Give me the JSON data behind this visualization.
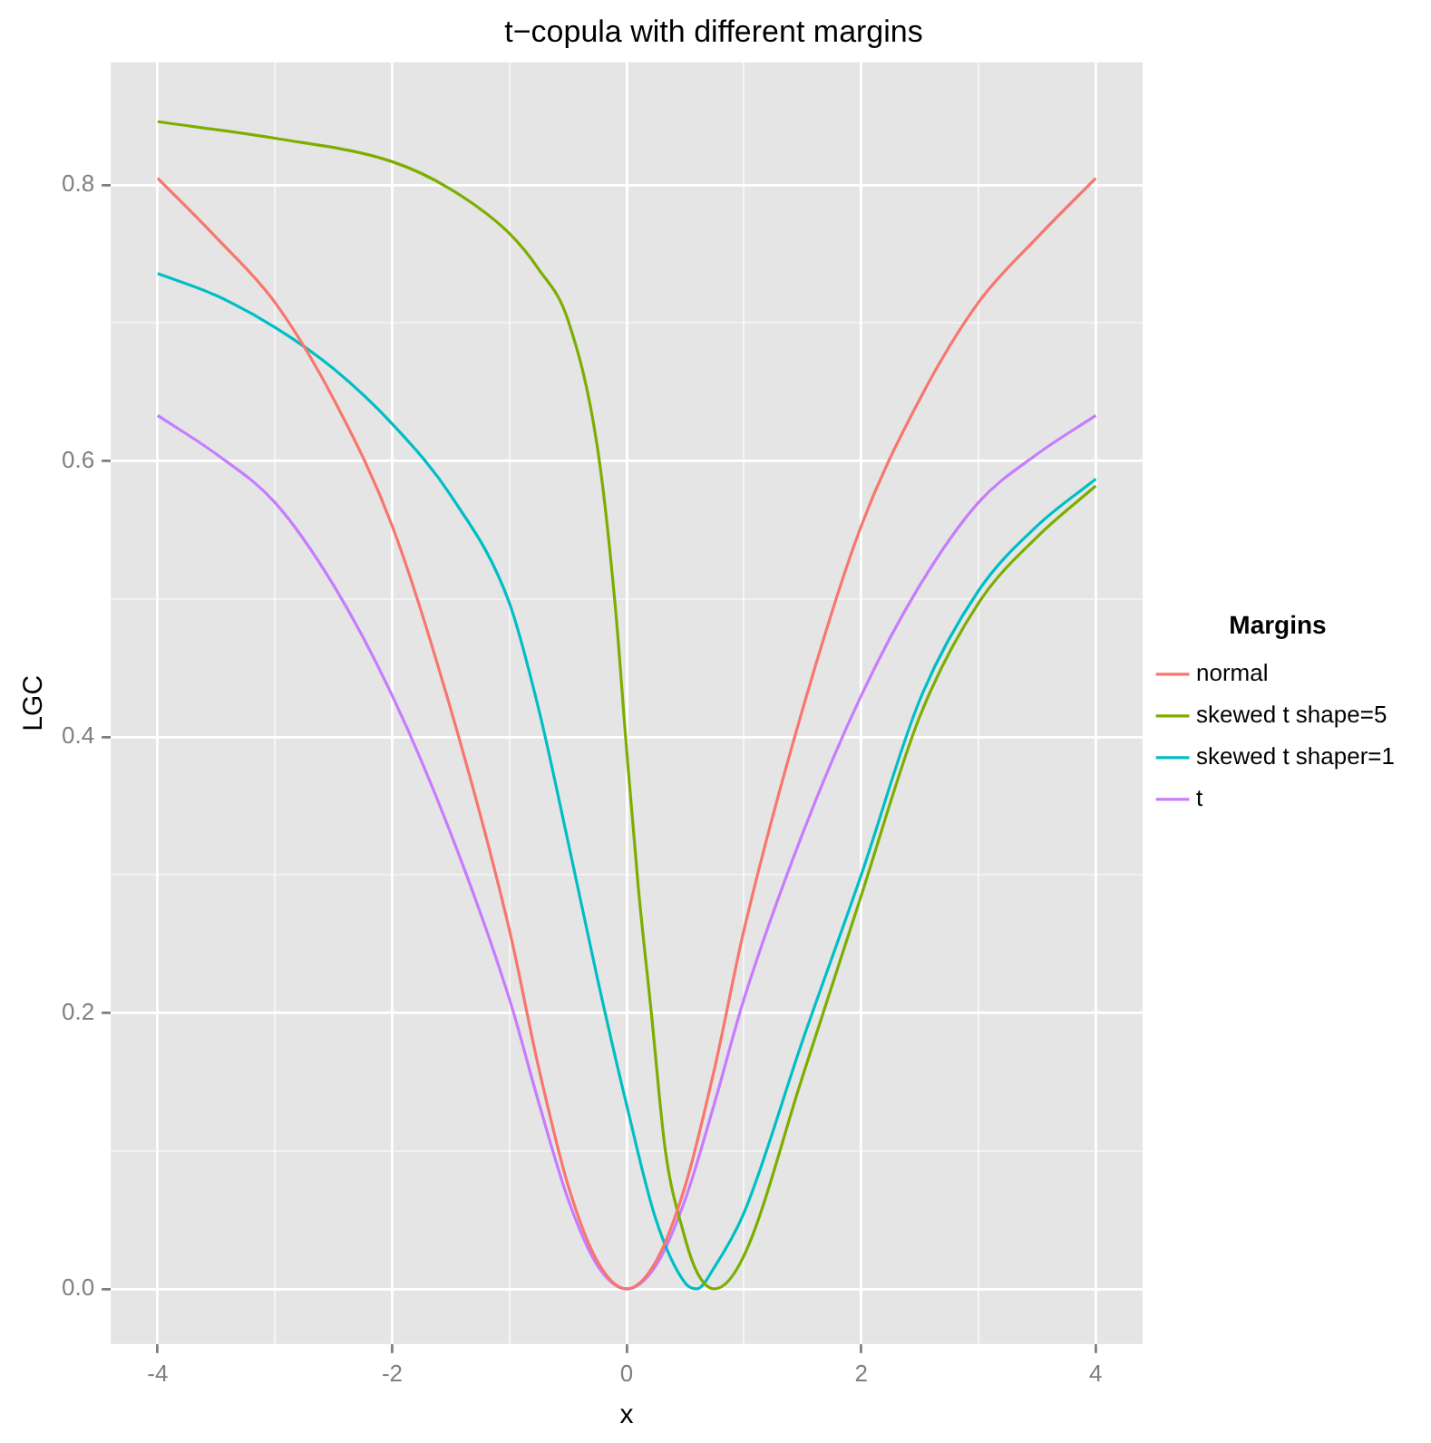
{
  "chart_data": {
    "type": "line",
    "title": "t−copula with different margins",
    "xlabel": "x",
    "ylabel": "LGC",
    "legend_title": "Margins",
    "xlim": [
      -4.4,
      4.4
    ],
    "ylim": [
      -0.04,
      0.889
    ],
    "xticks": [
      -4,
      {
        "value": -3,
        "label": null
      },
      -2,
      {
        "value": -1,
        "label": null
      },
      0,
      {
        "value": 1,
        "label": null
      },
      2,
      {
        "value": 3,
        "label": null
      },
      4
    ],
    "yticks": [
      {
        "value": 0,
        "label": "0.0"
      },
      {
        "value": 0.1,
        "label": null
      },
      0.2,
      {
        "value": 0.3,
        "label": null
      },
      0.4,
      {
        "value": 0.5,
        "label": null
      },
      0.6,
      {
        "value": 0.7,
        "label": null
      },
      0.8
    ],
    "grid": true,
    "legend": "right",
    "marker": "none",
    "line_style": "solid",
    "series": [
      {
        "name": "normal",
        "color": "#f8766d",
        "x": [
          -4,
          -3.5,
          -3,
          -2.5,
          -2,
          -1.5,
          -1,
          -0.75,
          -0.5,
          -0.25,
          0,
          0.25,
          0.5,
          0.75,
          1,
          1.5,
          2,
          2.5,
          3,
          3.5,
          4
        ],
        "values": [
          0.805,
          0.762,
          0.715,
          0.645,
          0.553,
          0.42,
          0.26,
          0.16,
          0.075,
          0.02,
          0,
          0.02,
          0.075,
          0.16,
          0.26,
          0.42,
          0.553,
          0.645,
          0.715,
          0.762,
          0.805
        ]
      },
      {
        "name": "skewed t shape=5",
        "color": "#7cae00",
        "x": [
          -4,
          -3,
          -2,
          -1.5,
          -1,
          -0.75,
          -0.5,
          -0.25,
          -0.1,
          0,
          0.1,
          0.21,
          0.33,
          0.48,
          0.6,
          0.75,
          1,
          1.5,
          2,
          2.5,
          3,
          3.5,
          4
        ],
        "values": [
          0.846,
          0.834,
          0.817,
          0.797,
          0.765,
          0.739,
          0.702,
          0.61,
          0.497,
          0.39,
          0.29,
          0.2,
          0.1,
          0.042,
          0.012,
          0,
          0.024,
          0.154,
          0.285,
          0.415,
          0.497,
          0.545,
          0.582
        ]
      },
      {
        "name": "skewed t shaper=1",
        "color": "#00bfc4",
        "x": [
          -4,
          -3.5,
          -3,
          -2.5,
          -2,
          -1.5,
          -1,
          -0.75,
          -0.5,
          -0.25,
          0,
          0.25,
          0.5,
          0.6,
          0.75,
          1,
          1.5,
          2,
          2.5,
          3,
          3.5,
          4
        ],
        "values": [
          0.736,
          0.72,
          0.697,
          0.667,
          0.627,
          0.575,
          0.497,
          0.42,
          0.324,
          0.225,
          0.133,
          0.05,
          0.004,
          0,
          0.016,
          0.055,
          0.18,
          0.3,
          0.427,
          0.506,
          0.553,
          0.587
        ]
      },
      {
        "name": "t",
        "color": "#c77cff",
        "x": [
          -4,
          -3.5,
          -3,
          -2.5,
          -2,
          -1.5,
          -1,
          -0.75,
          -0.5,
          -0.25,
          0,
          0.25,
          0.5,
          0.75,
          1,
          1.5,
          2,
          2.5,
          3,
          3.5,
          4
        ],
        "values": [
          0.633,
          0.605,
          0.57,
          0.51,
          0.43,
          0.33,
          0.21,
          0.135,
          0.065,
          0.017,
          0,
          0.017,
          0.065,
          0.135,
          0.21,
          0.33,
          0.43,
          0.51,
          0.57,
          0.605,
          0.633
        ]
      }
    ]
  }
}
